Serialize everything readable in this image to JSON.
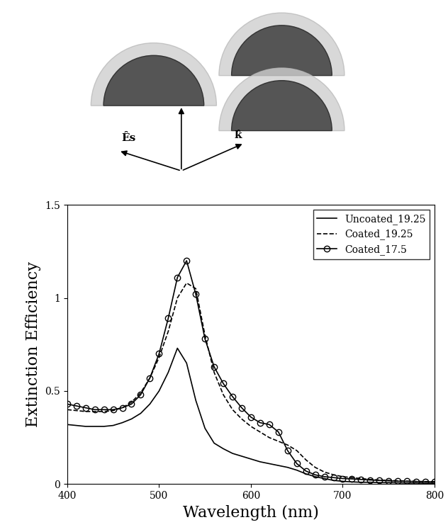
{
  "chart_data": {
    "type": "line",
    "x_label": "Wavelength (nm)",
    "y_label": "Extinction Efficiency",
    "xlim": [
      400,
      800
    ],
    "xticks": [
      400,
      500,
      600,
      700,
      800
    ],
    "ylim": [
      0,
      1.5
    ],
    "yticks": [
      0,
      0.5,
      1,
      1.5
    ],
    "legend": "upper right",
    "x": [
      400,
      410,
      420,
      430,
      440,
      450,
      460,
      470,
      480,
      490,
      500,
      510,
      520,
      530,
      540,
      550,
      560,
      570,
      580,
      590,
      600,
      610,
      620,
      630,
      640,
      650,
      660,
      670,
      680,
      690,
      700,
      710,
      720,
      730,
      740,
      750,
      760,
      770,
      780,
      790,
      800
    ],
    "series": [
      {
        "name": "Uncoated_19.25",
        "color": "#000000",
        "line_style": "solid",
        "marker": "none",
        "values": [
          0.32,
          0.315,
          0.31,
          0.31,
          0.31,
          0.315,
          0.33,
          0.35,
          0.38,
          0.43,
          0.5,
          0.6,
          0.73,
          0.65,
          0.45,
          0.3,
          0.22,
          0.19,
          0.165,
          0.15,
          0.135,
          0.12,
          0.11,
          0.1,
          0.09,
          0.075,
          0.055,
          0.04,
          0.03,
          0.02,
          0.015,
          0.012,
          0.01,
          0.01,
          0.008,
          0.008,
          0.007,
          0.006,
          0.006,
          0.005,
          0.005
        ]
      },
      {
        "name": "Coated_19.25",
        "color": "#000000",
        "line_style": "dashed",
        "marker": "none",
        "values": [
          0.4,
          0.395,
          0.39,
          0.39,
          0.39,
          0.395,
          0.41,
          0.44,
          0.49,
          0.57,
          0.68,
          0.82,
          1.0,
          1.08,
          1.05,
          0.8,
          0.6,
          0.48,
          0.4,
          0.35,
          0.31,
          0.28,
          0.25,
          0.23,
          0.21,
          0.18,
          0.13,
          0.09,
          0.065,
          0.05,
          0.04,
          0.035,
          0.03,
          0.025,
          0.022,
          0.02,
          0.018,
          0.016,
          0.015,
          0.014,
          0.013
        ]
      },
      {
        "name": "Coated_17.5",
        "color": "#000000",
        "line_style": "solid",
        "marker": "circle",
        "values": [
          0.43,
          0.42,
          0.41,
          0.4,
          0.4,
          0.4,
          0.41,
          0.43,
          0.48,
          0.57,
          0.7,
          0.89,
          1.11,
          1.2,
          1.02,
          0.78,
          0.63,
          0.54,
          0.47,
          0.41,
          0.36,
          0.33,
          0.32,
          0.28,
          0.18,
          0.11,
          0.07,
          0.05,
          0.04,
          0.035,
          0.03,
          0.028,
          0.025,
          0.022,
          0.02,
          0.018,
          0.016,
          0.015,
          0.014,
          0.013,
          0.012
        ]
      }
    ]
  },
  "diagram": {
    "field_label": "Ês",
    "wave_label": "k̂"
  }
}
